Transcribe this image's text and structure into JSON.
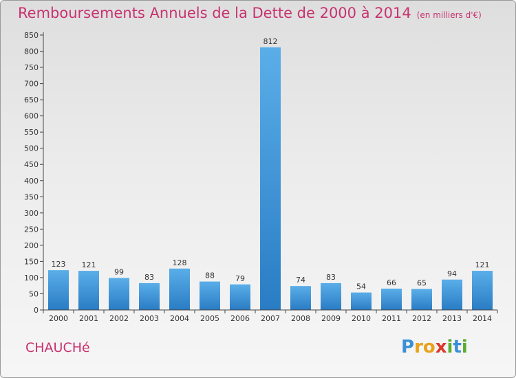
{
  "header": {
    "title": "Remboursements Annuels de la Dette de 2000 à 2014",
    "unit": "(en milliers d'€)"
  },
  "commune": "CHAUCHé",
  "logo": {
    "letters": [
      {
        "ch": "P",
        "color": "#3a8fd6"
      },
      {
        "ch": "r",
        "color": "#e8a21a"
      },
      {
        "ch": "o",
        "color": "#e8a21a"
      },
      {
        "ch": "x",
        "color": "#d93a2b"
      },
      {
        "ch": "i",
        "color": "#5aab2e"
      },
      {
        "ch": "t",
        "color": "#3a8fd6"
      },
      {
        "ch": "i",
        "color": "#5aab2e"
      }
    ]
  },
  "colors": {
    "bar_top": "#5aaee8",
    "bar_bottom": "#2a7cc4",
    "title": "#c8326e",
    "axis": "#444444"
  },
  "chart_data": {
    "type": "bar",
    "categories": [
      "2000",
      "2001",
      "2002",
      "2003",
      "2004",
      "2005",
      "2006",
      "2007",
      "2008",
      "2009",
      "2010",
      "2011",
      "2012",
      "2013",
      "2014"
    ],
    "values": [
      123,
      121,
      99,
      83,
      128,
      88,
      79,
      812,
      74,
      83,
      54,
      66,
      65,
      94,
      121
    ],
    "title": "Remboursements Annuels de la Dette de 2000 à 2014",
    "xlabel": "",
    "ylabel": "",
    "ylim": [
      0,
      850
    ],
    "yticks": [
      0,
      50,
      100,
      150,
      200,
      250,
      300,
      350,
      400,
      450,
      500,
      550,
      600,
      650,
      700,
      750,
      800,
      850
    ],
    "grid": false,
    "legend": "none"
  }
}
